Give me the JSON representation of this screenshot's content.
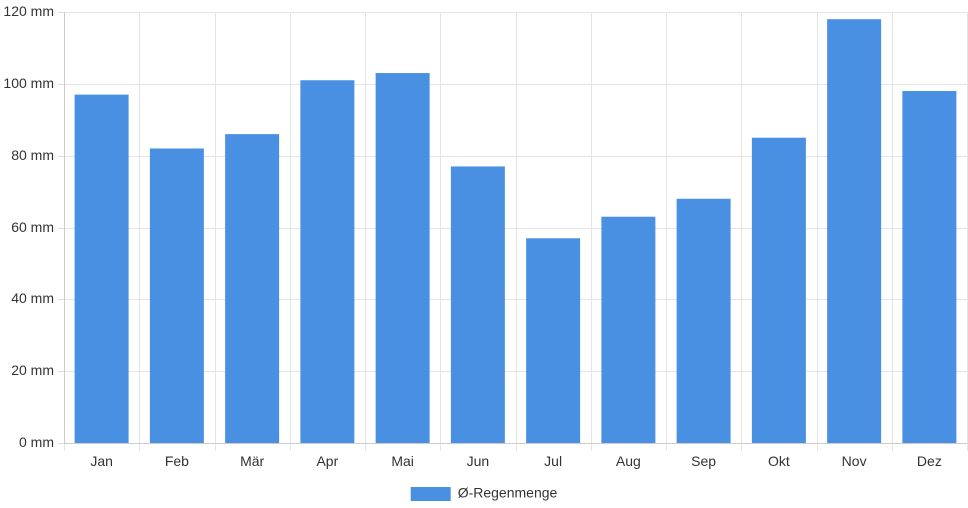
{
  "chart_data": {
    "type": "bar",
    "categories": [
      "Jan",
      "Feb",
      "Mär",
      "Apr",
      "Mai",
      "Jun",
      "Jul",
      "Aug",
      "Sep",
      "Okt",
      "Nov",
      "Dez"
    ],
    "series": [
      {
        "name": "Ø-Regenmenge",
        "values": [
          97,
          82,
          86,
          101,
          103,
          77,
          57,
          63,
          68,
          85,
          118,
          98
        ],
        "color": "#4a90e2"
      }
    ],
    "y_ticks": [
      "0 mm",
      "20 mm",
      "40 mm",
      "60 mm",
      "80 mm",
      "100 mm",
      "120 mm"
    ],
    "ylim": [
      0,
      120
    ],
    "grid": true,
    "legend": "bottom-center",
    "title": "",
    "xlabel": "",
    "ylabel": ""
  }
}
